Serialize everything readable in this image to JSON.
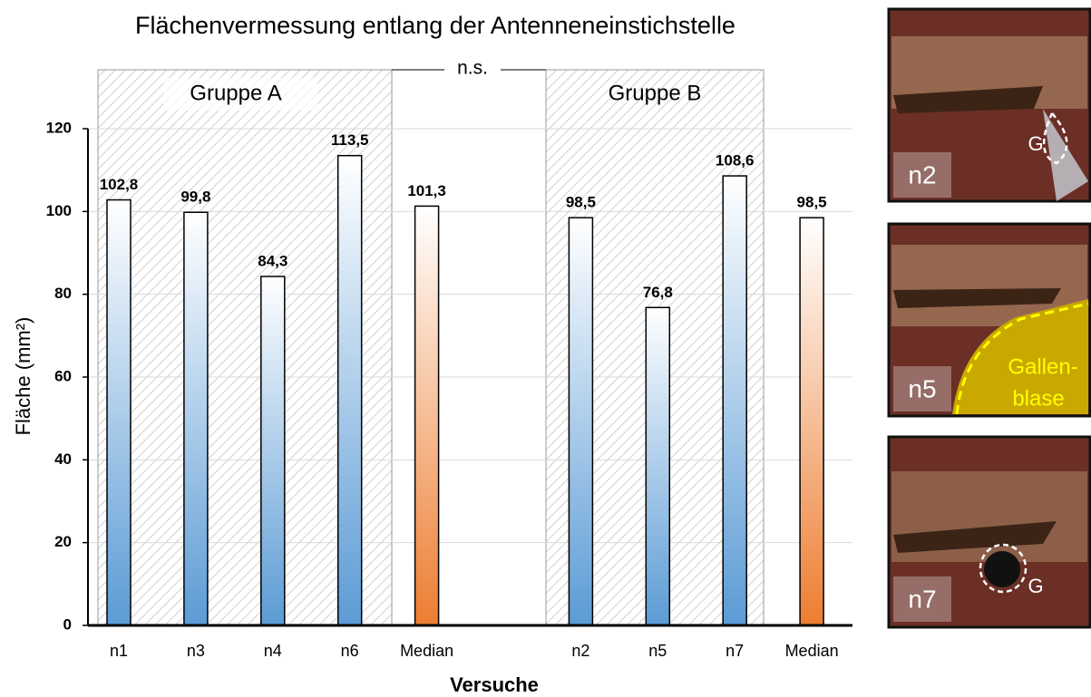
{
  "chart_data": {
    "type": "bar",
    "title": "Flächenvermessung entlang der Antenneneinstichstelle",
    "x_label": "Versuche",
    "y_label": "Fläche (mm²)",
    "categories": [
      "n1",
      "n3",
      "n4",
      "n6",
      "Median",
      null,
      "n2",
      "n5",
      "n7",
      "Median"
    ],
    "values": [
      102.8,
      99.8,
      84.3,
      113.5,
      101.3,
      null,
      98.5,
      76.8,
      108.6,
      98.5
    ],
    "value_labels": [
      "102,8",
      "99,8",
      "84,3",
      "113,5",
      "101,3",
      null,
      "98,5",
      "76,8",
      "108,6",
      "98,5"
    ],
    "colors": [
      "#5b9bd5",
      "#5b9bd5",
      "#5b9bd5",
      "#5b9bd5",
      "#ed7d31",
      null,
      "#5b9bd5",
      "#5b9bd5",
      "#5b9bd5",
      "#ed7d31"
    ],
    "groups": [
      "Gruppe A",
      "Gruppe B"
    ],
    "significance": "n.s.",
    "ylim": [
      0,
      120
    ],
    "yticks": [
      0,
      20,
      40,
      60,
      80,
      100,
      120
    ],
    "grid": true
  },
  "images": [
    {
      "label": "n2",
      "annotation": [
        "G"
      ]
    },
    {
      "label": "n5",
      "annotation": [
        "Gallen-",
        "blase"
      ]
    },
    {
      "label": "n7",
      "annotation": [
        "G"
      ]
    }
  ]
}
